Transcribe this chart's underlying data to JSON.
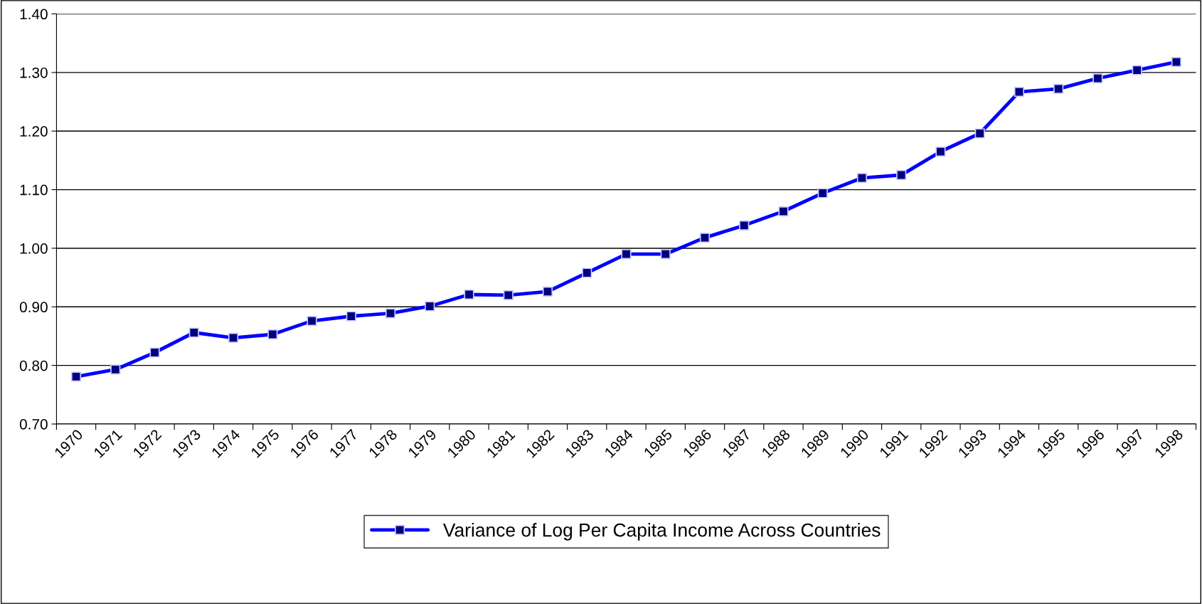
{
  "chart_data": {
    "type": "line",
    "categories": [
      "1970",
      "1971",
      "1972",
      "1973",
      "1974",
      "1975",
      "1976",
      "1977",
      "1978",
      "1979",
      "1980",
      "1981",
      "1982",
      "1983",
      "1984",
      "1985",
      "1986",
      "1987",
      "1988",
      "1989",
      "1990",
      "1991",
      "1992",
      "1993",
      "1994",
      "1995",
      "1996",
      "1997",
      "1998"
    ],
    "series": [
      {
        "name": "Variance of Log Per Capita Income Across Countries",
        "color": "#0000ff",
        "values": [
          0.781,
          0.793,
          0.822,
          0.856,
          0.847,
          0.853,
          0.876,
          0.884,
          0.889,
          0.901,
          0.921,
          0.92,
          0.926,
          0.958,
          0.99,
          0.99,
          1.018,
          1.039,
          1.063,
          1.094,
          1.12,
          1.125,
          1.165,
          1.196,
          1.267,
          1.272,
          1.29,
          1.304,
          1.318
        ]
      }
    ],
    "ylim": [
      0.7,
      1.4
    ],
    "yticks": [
      {
        "value": 0.7,
        "label": "0.70"
      },
      {
        "value": 0.8,
        "label": "0.80"
      },
      {
        "value": 0.9,
        "label": "0.90"
      },
      {
        "value": 1.0,
        "label": "1.00"
      },
      {
        "value": 1.1,
        "label": "1.10"
      },
      {
        "value": 1.2,
        "label": "1.20"
      },
      {
        "value": 1.3,
        "label": "1.30"
      },
      {
        "value": 1.4,
        "label": "1.40"
      }
    ],
    "grid": "y",
    "legend": "bottom",
    "marker": "square",
    "line_style": "solid"
  }
}
